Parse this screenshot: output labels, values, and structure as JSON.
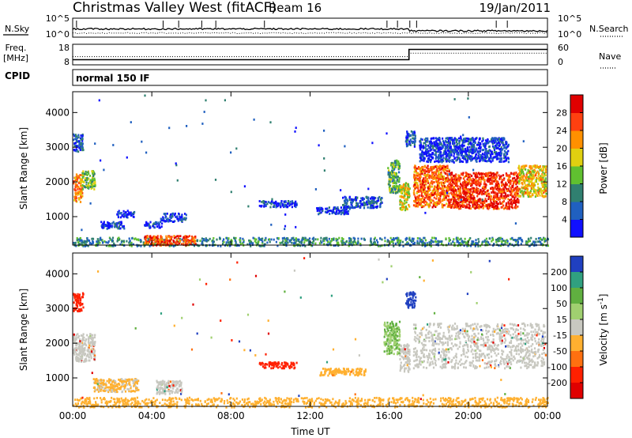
{
  "header": {
    "station": "Christmas Valley West (fitACF)",
    "beam": "Beam 16",
    "date": "19/Jan/2011",
    "nsky_label": "N.Sky",
    "nsearch_label": "N.Search",
    "freq_label_1": "Freq.",
    "freq_label_2": "[MHz]",
    "nave_label": "Nave",
    "cpid_label": "CPID",
    "cpid_value": "normal 150 IF",
    "noise_ticks_left": [
      "10^5",
      "10^0"
    ],
    "noise_ticks_right": [
      "10^5",
      "10^0"
    ],
    "freq_ticks": [
      "18",
      "8"
    ],
    "nave_ticks": [
      "60",
      "0"
    ]
  },
  "chart_data": [
    {
      "type": "heatmap",
      "panel": "power",
      "ylabel": "Slant Range [km]",
      "xlabel": "",
      "ylim": [
        180,
        4600
      ],
      "xlim": [
        0,
        24
      ],
      "yticks": [
        "1000",
        "2000",
        "3000",
        "4000"
      ],
      "xticks": [
        "00:00",
        "04:00",
        "08:00",
        "12:00",
        "16:00",
        "20:00",
        "00:00"
      ],
      "colorbar": {
        "label": "Power [dB]",
        "ticks": [
          "4",
          "8",
          "12",
          "16",
          "20",
          "24",
          "28"
        ],
        "colors": [
          "#1010ff",
          "#2060c0",
          "#308070",
          "#60c030",
          "#e0d010",
          "#ff9000",
          "#ff4010",
          "#e00000"
        ]
      },
      "regions": [
        {
          "x": [
            0.0,
            0.45
          ],
          "y": [
            1450,
            2250
          ],
          "level": 0.7
        },
        {
          "x": [
            0.45,
            1.1
          ],
          "y": [
            1800,
            2350
          ],
          "level": 0.45
        },
        {
          "x": [
            0.0,
            0.5
          ],
          "y": [
            2900,
            3400
          ],
          "level": 0.2
        },
        {
          "x": [
            1.4,
            2.6
          ],
          "y": [
            680,
            880
          ],
          "level": 0.12
        },
        {
          "x": [
            2.2,
            3.1
          ],
          "y": [
            1000,
            1200
          ],
          "level": 0.1
        },
        {
          "x": [
            3.6,
            4.5
          ],
          "y": [
            700,
            880
          ],
          "level": 0.1
        },
        {
          "x": [
            4.4,
            5.7
          ],
          "y": [
            880,
            1120
          ],
          "level": 0.12
        },
        {
          "x": [
            9.4,
            11.3
          ],
          "y": [
            1300,
            1480
          ],
          "level": 0.14
        },
        {
          "x": [
            12.3,
            14.0
          ],
          "y": [
            1100,
            1300
          ],
          "level": 0.12
        },
        {
          "x": [
            13.6,
            15.6
          ],
          "y": [
            1280,
            1600
          ],
          "level": 0.15
        },
        {
          "x": [
            15.9,
            16.5
          ],
          "y": [
            1700,
            2650
          ],
          "level": 0.4
        },
        {
          "x": [
            16.5,
            17.0
          ],
          "y": [
            1200,
            2000
          ],
          "level": 0.55
        },
        {
          "x": [
            16.8,
            17.3
          ],
          "y": [
            3050,
            3500
          ],
          "level": 0.15
        },
        {
          "x": [
            17.2,
            19.0
          ],
          "y": [
            1300,
            2500
          ],
          "level": 0.75
        },
        {
          "x": [
            19.0,
            22.5
          ],
          "y": [
            1250,
            2300
          ],
          "level": 0.85
        },
        {
          "x": [
            22.5,
            23.9
          ],
          "y": [
            1600,
            2500
          ],
          "level": 0.6
        },
        {
          "x": [
            17.5,
            22.0
          ],
          "y": [
            2600,
            3300
          ],
          "level": 0.12
        },
        {
          "x": [
            0.0,
            24.0
          ],
          "y": [
            180,
            420
          ],
          "level": 0.3
        },
        {
          "x": [
            3.6,
            6.2
          ],
          "y": [
            200,
            480
          ],
          "level": 0.8
        }
      ]
    },
    {
      "type": "heatmap",
      "panel": "velocity",
      "ylabel": "Slant Range [km]",
      "xlabel": "Time UT",
      "ylim": [
        180,
        4600
      ],
      "xlim": [
        0,
        24
      ],
      "yticks": [
        "1000",
        "2000",
        "3000",
        "4000"
      ],
      "xticks": [
        "00:00",
        "04:00",
        "08:00",
        "12:00",
        "16:00",
        "20:00",
        "00:00"
      ],
      "colorbar": {
        "label": "Velocity [m s^-1]",
        "ticks": [
          "200",
          "100",
          "50",
          "15",
          "-15",
          "-50",
          "-100",
          "-200"
        ],
        "colors": [
          "#2040c0",
          "#30a080",
          "#60b040",
          "#a0d070",
          "#c8c8c0",
          "#ffb030",
          "#ff7010",
          "#ff2000",
          "#e00000"
        ]
      },
      "regions": [
        {
          "x": [
            0.0,
            1.1
          ],
          "y": [
            1500,
            2300
          ],
          "v": 0.0
        },
        {
          "x": [
            0.0,
            0.5
          ],
          "y": [
            2950,
            3500
          ],
          "v": -200
        },
        {
          "x": [
            1.0,
            3.3
          ],
          "y": [
            620,
            1000
          ],
          "v": -20
        },
        {
          "x": [
            4.2,
            5.5
          ],
          "y": [
            550,
            950
          ],
          "v": 0.0
        },
        {
          "x": [
            9.4,
            11.3
          ],
          "y": [
            1300,
            1480
          ],
          "v": -200
        },
        {
          "x": [
            12.4,
            14.8
          ],
          "y": [
            1100,
            1300
          ],
          "v": -50
        },
        {
          "x": [
            15.7,
            16.5
          ],
          "y": [
            1700,
            2650
          ],
          "v": 30
        },
        {
          "x": [
            16.5,
            17.0
          ],
          "y": [
            1200,
            2000
          ],
          "v": 0.0
        },
        {
          "x": [
            16.8,
            17.3
          ],
          "y": [
            3050,
            3500
          ],
          "v": 200
        },
        {
          "x": [
            17.2,
            23.9
          ],
          "y": [
            1300,
            2600
          ],
          "v": 0.0
        },
        {
          "x": [
            0.0,
            24.0
          ],
          "y": [
            180,
            460
          ],
          "v": -50
        }
      ]
    }
  ],
  "noise_data": {
    "x": [
      0,
      24
    ],
    "nsky_level": 0.35,
    "nsearch_level": 0.55,
    "freq_mhz": [
      [
        0,
        10.5
      ],
      [
        17,
        10.5
      ],
      [
        17,
        15.5
      ],
      [
        24,
        15.5
      ]
    ],
    "nave": [
      [
        0,
        24
      ],
      [
        17,
        24
      ],
      [
        17,
        34
      ],
      [
        24,
        34
      ]
    ]
  }
}
